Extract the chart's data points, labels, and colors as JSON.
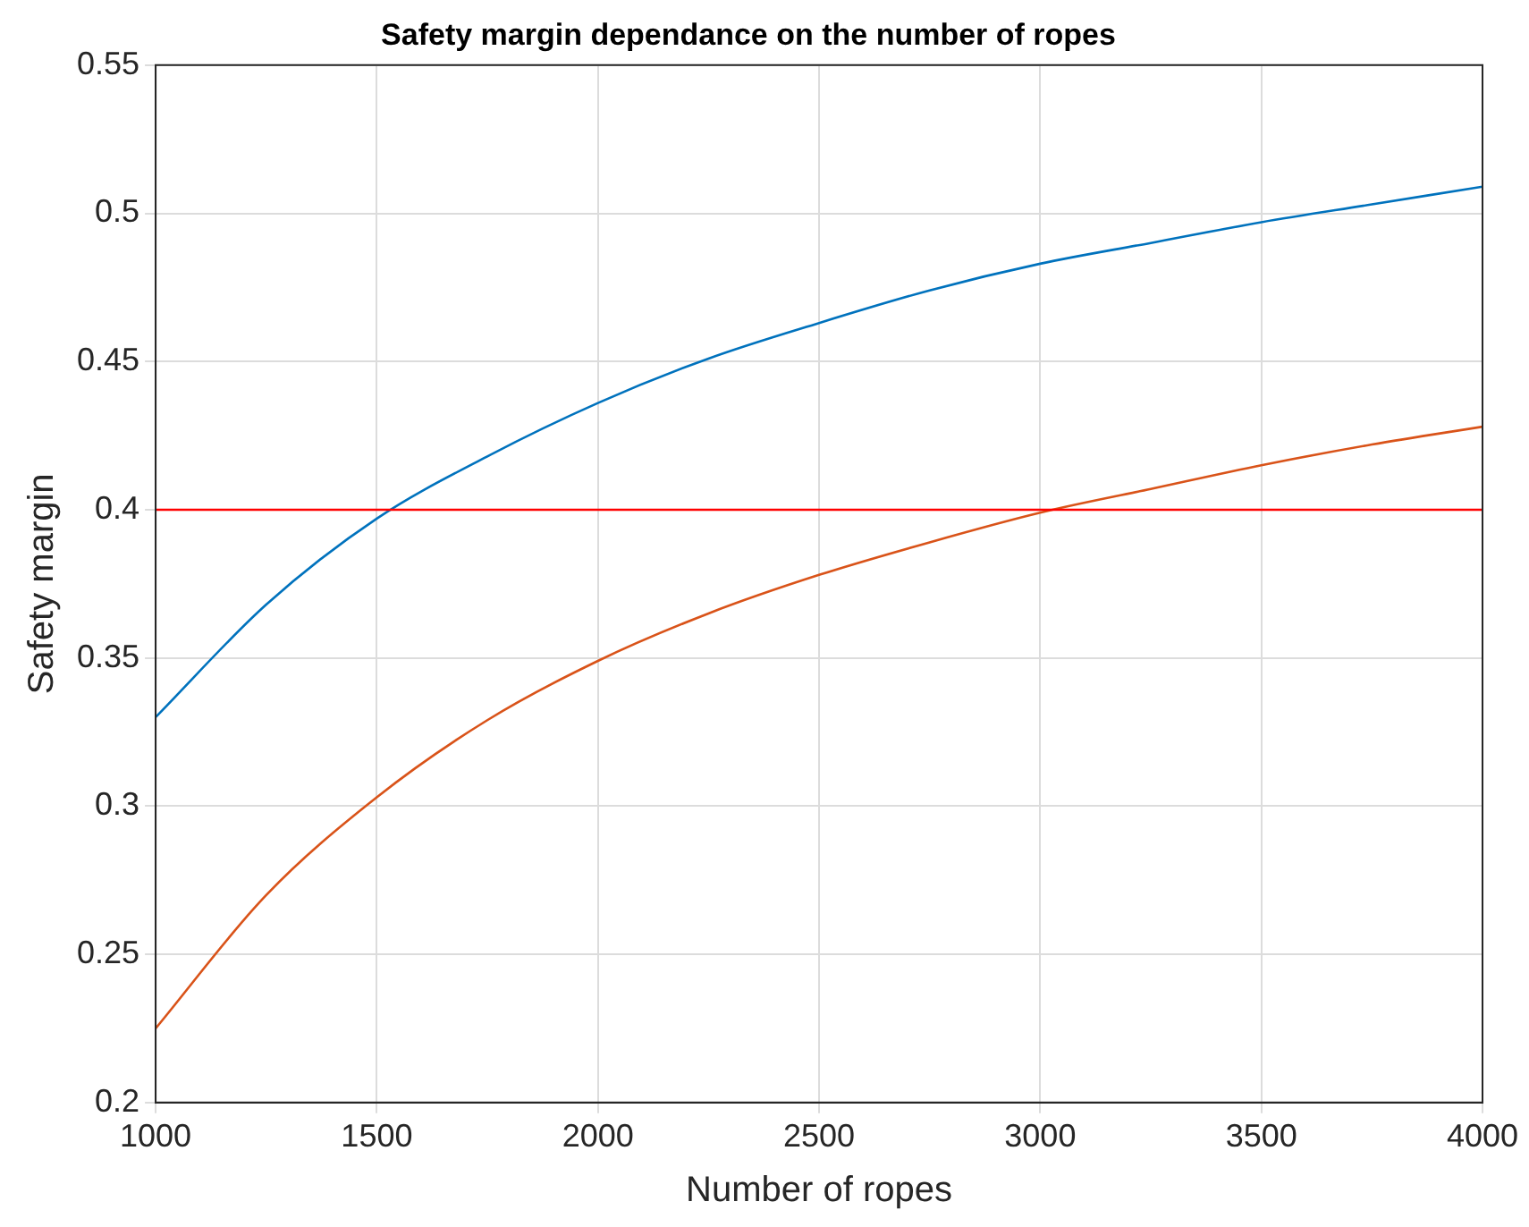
{
  "chart_data": {
    "type": "line",
    "title": "Safety margin dependance on the number of ropes",
    "xlabel": "Number of ropes",
    "ylabel": "Safety margin",
    "x": [
      1000,
      1250,
      1500,
      1750,
      2000,
      2250,
      2500,
      2750,
      3000,
      3250,
      3500,
      3750,
      4000
    ],
    "series": [
      {
        "color": "#0072bd",
        "values": [
          0.33,
          0.368,
          0.397,
          0.418,
          0.436,
          0.451,
          0.463,
          0.474,
          0.483,
          0.49,
          0.497,
          0.503,
          0.509
        ]
      },
      {
        "color": "#d95319",
        "values": [
          0.225,
          0.27,
          0.303,
          0.329,
          0.349,
          0.365,
          0.378,
          0.389,
          0.399,
          0.407,
          0.415,
          0.422,
          0.428
        ]
      }
    ],
    "ref_lines": [
      {
        "axis": "y",
        "value": 0.4,
        "color": "#ff0000"
      }
    ],
    "xlim": [
      1000,
      4000
    ],
    "xticks": [
      1000,
      1500,
      2000,
      2500,
      3000,
      3500,
      4000
    ],
    "ylim": [
      0.2,
      0.55
    ],
    "yticks": [
      0.2,
      0.25,
      0.3,
      0.35,
      0.4,
      0.45,
      0.5,
      0.55
    ],
    "grid": true,
    "legend": false,
    "marker": "none",
    "line_style": "solid"
  }
}
